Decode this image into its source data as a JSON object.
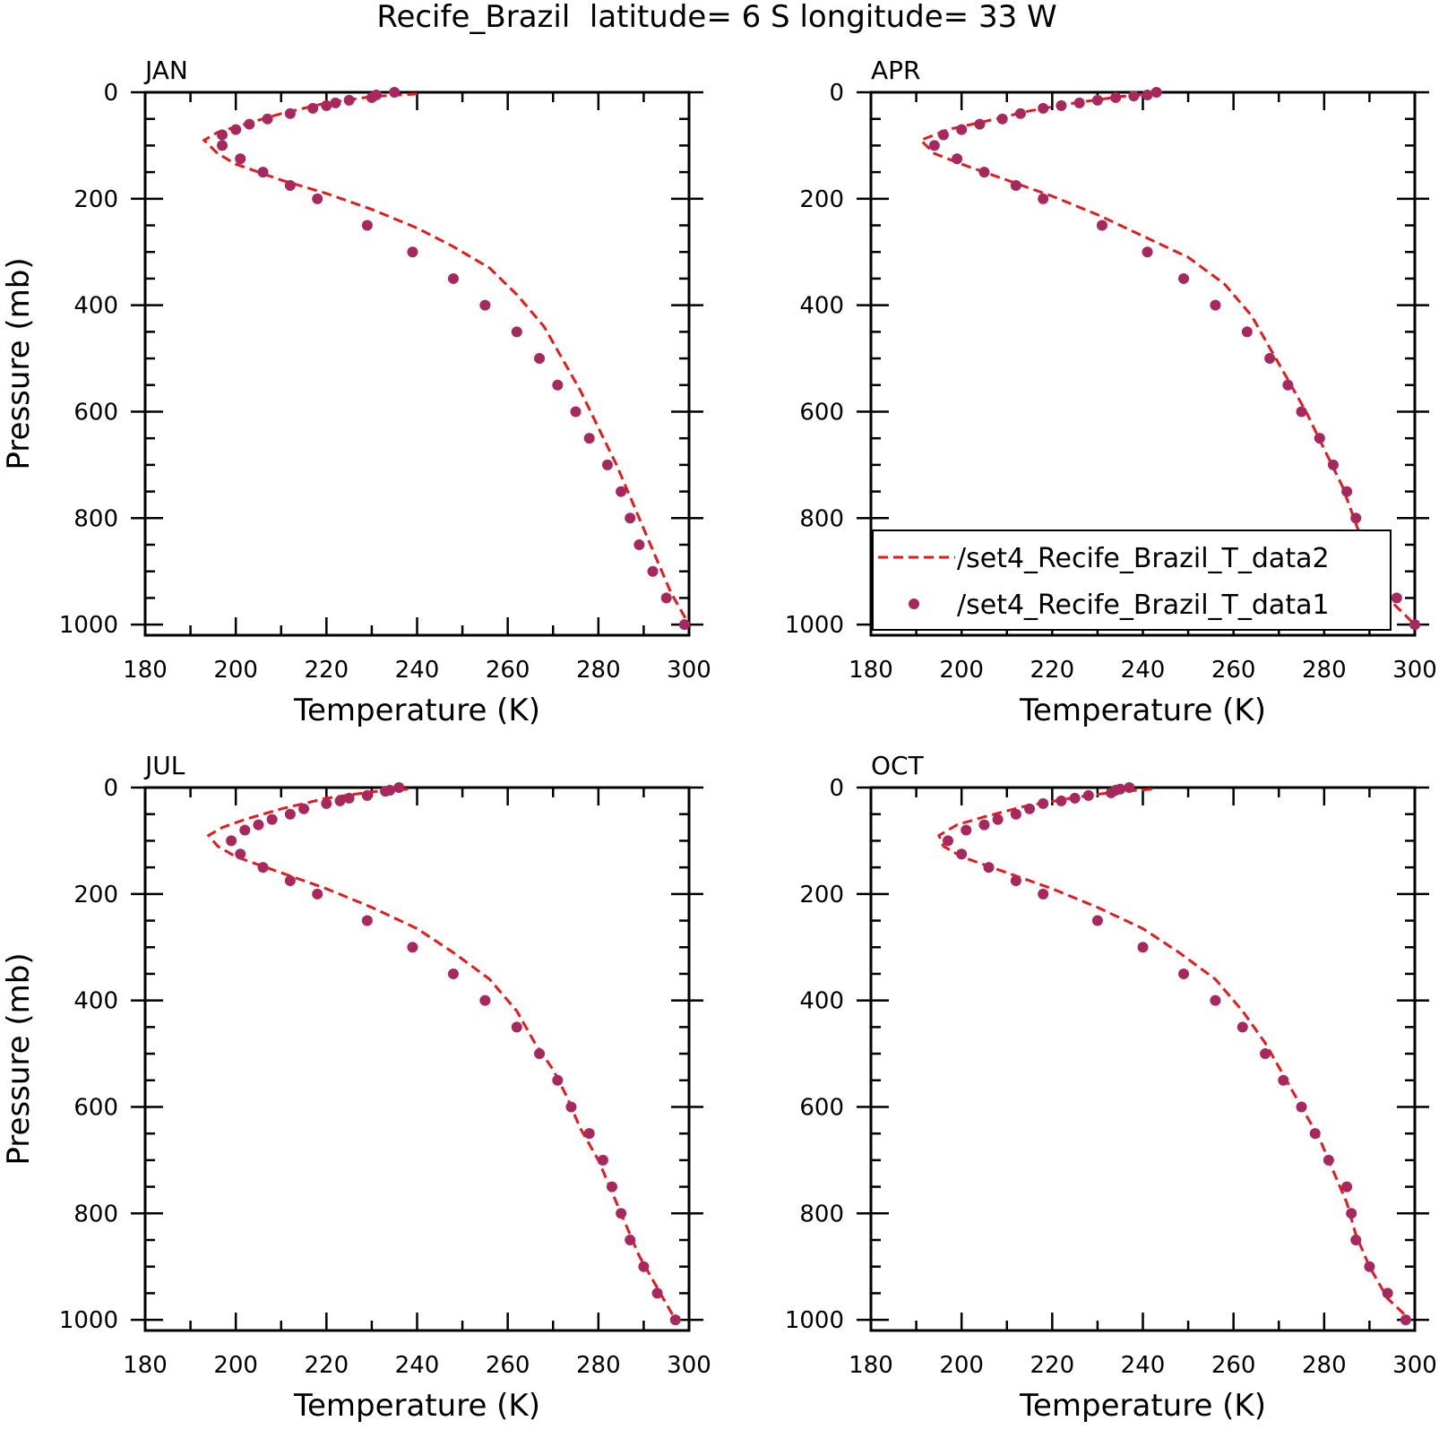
{
  "title": "Recife_Brazil  latitude= 6 S longitude= 33 W",
  "colors": {
    "model_line": "#e8191b",
    "obs_points": "#a8285e",
    "axes": "#000000"
  },
  "legend": {
    "placement": "bottom-right of APR panel",
    "entries": [
      {
        "label": "/set4_Recife_Brazil_T_data2",
        "style": "dashed-line",
        "series": "model"
      },
      {
        "label": "/set4_Recife_Brazil_T_data1",
        "style": "dot",
        "series": "obs"
      }
    ]
  },
  "chart_data": [
    {
      "type": "line",
      "panel": "JAN",
      "xlabel": "Temperature (K)",
      "ylabel": "Pressure (mb)",
      "xlim": [
        180,
        300
      ],
      "ylim": [
        0,
        1020
      ],
      "y_inverted": true,
      "xticks": [
        "180",
        "200",
        "220",
        "240",
        "260",
        "280",
        "300"
      ],
      "yticks": [
        "0",
        "200",
        "400",
        "600",
        "800",
        "1000"
      ],
      "series": [
        {
          "kind": "dashed-line",
          "x": [
            240,
            230,
            220,
            210,
            202,
            196,
            193,
            196,
            200,
            210,
            220,
            230,
            240,
            248,
            256,
            262,
            268,
            272,
            276,
            280,
            284,
            288,
            292,
            296,
            300
          ],
          "y": [
            3,
            8,
            20,
            40,
            60,
            75,
            90,
            115,
            135,
            165,
            190,
            220,
            255,
            290,
            330,
            380,
            440,
            500,
            560,
            630,
            700,
            780,
            860,
            940,
            1000
          ]
        },
        {
          "kind": "dots",
          "x": [
            235,
            231,
            230,
            225,
            222,
            220,
            217,
            212,
            207,
            203,
            200,
            197,
            197,
            201,
            206,
            212,
            218,
            229,
            239,
            248,
            255,
            262,
            267,
            271,
            275,
            278,
            282,
            285,
            287,
            289,
            292,
            295,
            299
          ],
          "y": [
            0,
            5,
            10,
            15,
            20,
            25,
            30,
            40,
            50,
            60,
            70,
            80,
            100,
            125,
            150,
            175,
            200,
            250,
            300,
            350,
            400,
            450,
            500,
            550,
            600,
            650,
            700,
            750,
            800,
            850,
            900,
            950,
            1000
          ]
        }
      ]
    },
    {
      "type": "line",
      "panel": "APR",
      "xlabel": "Temperature (K)",
      "ylabel": "",
      "xlim": [
        180,
        300
      ],
      "ylim": [
        0,
        1020
      ],
      "y_inverted": true,
      "xticks": [
        "180",
        "200",
        "220",
        "240",
        "260",
        "280",
        "300"
      ],
      "yticks": [
        "0",
        "200",
        "400",
        "600",
        "800",
        "1000"
      ],
      "series": [
        {
          "kind": "dashed-line",
          "x": [
            243,
            235,
            225,
            215,
            205,
            197,
            191,
            194,
            200,
            210,
            220,
            230,
            240,
            250,
            258,
            264,
            268,
            272,
            276,
            280,
            284,
            287,
            290,
            294,
            300
          ],
          "y": [
            3,
            8,
            20,
            35,
            55,
            70,
            90,
            115,
            135,
            165,
            195,
            230,
            270,
            310,
            360,
            420,
            480,
            540,
            600,
            670,
            740,
            810,
            880,
            950,
            1000
          ]
        },
        {
          "kind": "dots",
          "x": [
            243,
            241,
            238,
            234,
            230,
            226,
            222,
            218,
            213,
            209,
            204,
            200,
            196,
            194,
            199,
            205,
            212,
            218,
            231,
            241,
            249,
            256,
            263,
            268,
            272,
            275,
            279,
            282,
            285,
            287,
            290,
            292,
            296,
            300
          ],
          "y": [
            0,
            5,
            7,
            10,
            15,
            20,
            25,
            30,
            40,
            50,
            60,
            70,
            80,
            100,
            125,
            150,
            175,
            200,
            250,
            300,
            350,
            400,
            450,
            500,
            550,
            600,
            650,
            700,
            750,
            800,
            850,
            900,
            950,
            1000
          ]
        }
      ]
    },
    {
      "type": "line",
      "panel": "JUL",
      "xlabel": "Temperature (K)",
      "ylabel": "Pressure (mb)",
      "xlim": [
        180,
        300
      ],
      "ylim": [
        0,
        1020
      ],
      "y_inverted": true,
      "xticks": [
        "180",
        "200",
        "220",
        "240",
        "260",
        "280",
        "300"
      ],
      "yticks": [
        "0",
        "200",
        "400",
        "600",
        "800",
        "1000"
      ],
      "series": [
        {
          "kind": "dashed-line",
          "x": [
            238,
            230,
            220,
            210,
            202,
            197,
            194,
            196,
            200,
            210,
            220,
            230,
            240,
            248,
            256,
            262,
            266,
            270,
            273,
            276,
            280,
            283,
            286,
            289,
            293,
            297
          ],
          "y": [
            3,
            8,
            20,
            40,
            60,
            75,
            90,
            110,
            130,
            160,
            190,
            225,
            265,
            310,
            360,
            420,
            480,
            530,
            580,
            640,
            700,
            760,
            820,
            880,
            940,
            1000
          ]
        },
        {
          "kind": "dots",
          "x": [
            236,
            234,
            233,
            229,
            225,
            223,
            220,
            215,
            212,
            208,
            205,
            202,
            199,
            201,
            206,
            212,
            218,
            229,
            239,
            248,
            255,
            262,
            267,
            271,
            274,
            278,
            281,
            283,
            285,
            287,
            290,
            293,
            297
          ],
          "y": [
            0,
            5,
            7,
            15,
            20,
            25,
            30,
            40,
            50,
            60,
            70,
            80,
            100,
            125,
            150,
            175,
            200,
            250,
            300,
            350,
            400,
            450,
            500,
            550,
            600,
            650,
            700,
            750,
            800,
            850,
            900,
            950,
            1000
          ]
        }
      ]
    },
    {
      "type": "line",
      "panel": "OCT",
      "xlabel": "Temperature (K)",
      "ylabel": "",
      "xlim": [
        180,
        300
      ],
      "ylim": [
        0,
        1020
      ],
      "y_inverted": true,
      "xticks": [
        "180",
        "200",
        "220",
        "240",
        "260",
        "280",
        "300"
      ],
      "yticks": [
        "0",
        "200",
        "400",
        "600",
        "800",
        "1000"
      ],
      "series": [
        {
          "kind": "dashed-line",
          "x": [
            242,
            234,
            224,
            214,
            205,
            199,
            195,
            196,
            200,
            210,
            220,
            230,
            240,
            248,
            256,
            262,
            267,
            271,
            275,
            279,
            282,
            285,
            287,
            290,
            294,
            299
          ],
          "y": [
            3,
            8,
            20,
            35,
            55,
            70,
            90,
            110,
            130,
            160,
            190,
            225,
            265,
            310,
            360,
            420,
            480,
            540,
            600,
            660,
            720,
            780,
            840,
            900,
            960,
            1000
          ]
        },
        {
          "kind": "dots",
          "x": [
            237,
            235,
            234,
            233,
            228,
            225,
            222,
            218,
            215,
            212,
            208,
            205,
            201,
            197,
            200,
            206,
            212,
            218,
            230,
            240,
            249,
            256,
            262,
            267,
            271,
            275,
            278,
            281,
            285,
            286,
            287,
            290,
            294,
            298
          ],
          "y": [
            0,
            3,
            5,
            10,
            15,
            20,
            25,
            30,
            40,
            50,
            60,
            70,
            80,
            100,
            125,
            150,
            175,
            200,
            250,
            300,
            350,
            400,
            450,
            500,
            550,
            600,
            650,
            700,
            750,
            800,
            850,
            900,
            950,
            1000
          ]
        }
      ]
    }
  ]
}
